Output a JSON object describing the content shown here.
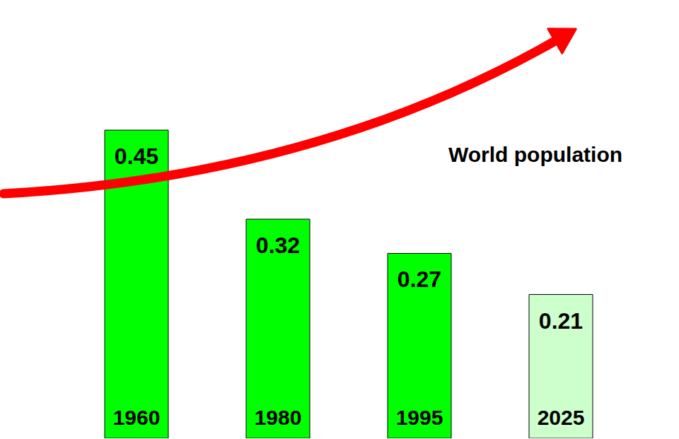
{
  "chart_data": {
    "type": "bar",
    "categories": [
      "1960",
      "1980",
      "1995",
      "2025"
    ],
    "values": [
      0.45,
      0.32,
      0.27,
      0.21
    ],
    "colors": [
      "#00ff00",
      "#00ff00",
      "#00ff00",
      "#ccffcc"
    ],
    "ylim": [
      0,
      0.64
    ],
    "data_labels": true,
    "tick_labels": "x",
    "grid": false,
    "annotation": "World population"
  }
}
